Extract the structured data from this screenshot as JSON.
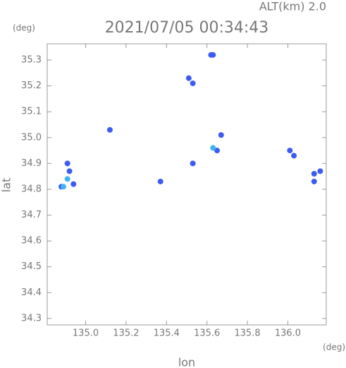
{
  "chart_data": {
    "type": "scatter",
    "title": "2021/07/05 00:34:43",
    "subtitle": "ALT(km) 2.0",
    "y_unit": "(deg)",
    "x_unit": "(deg)",
    "x_label": "lon",
    "y_label": "lat",
    "xlim": [
      134.81,
      136.19
    ],
    "ylim": [
      34.275,
      35.363
    ],
    "xticks": [
      {
        "value": 135,
        "label": "135.0"
      },
      135.2,
      135.4,
      135.6,
      135.8,
      {
        "value": 136,
        "label": "136.0"
      }
    ],
    "yticks": [
      34.3,
      34.4,
      34.5,
      34.6,
      34.7,
      34.8,
      34.9,
      {
        "value": 35,
        "label": "35.0"
      },
      35.1,
      35.2,
      35.3
    ],
    "series": [
      {
        "color": "#3d5cf2",
        "x": [
          134.88,
          134.94,
          134.92,
          134.91,
          135.12,
          135.37,
          135.51,
          135.53,
          135.62,
          135.63,
          135.67,
          135.65,
          135.53,
          136.01,
          136.03,
          136.13,
          136.16,
          136.13
        ],
        "values": [
          34.81,
          34.82,
          34.87,
          34.9,
          35.03,
          34.83,
          35.23,
          35.21,
          35.32,
          35.32,
          35.01,
          34.95,
          34.9,
          34.95,
          34.93,
          34.86,
          34.87,
          34.83
        ]
      },
      {
        "color": "#3fb4f2",
        "x": [
          134.91,
          134.89,
          135.63
        ],
        "values": [
          34.84,
          34.81,
          34.96
        ]
      }
    ]
  }
}
